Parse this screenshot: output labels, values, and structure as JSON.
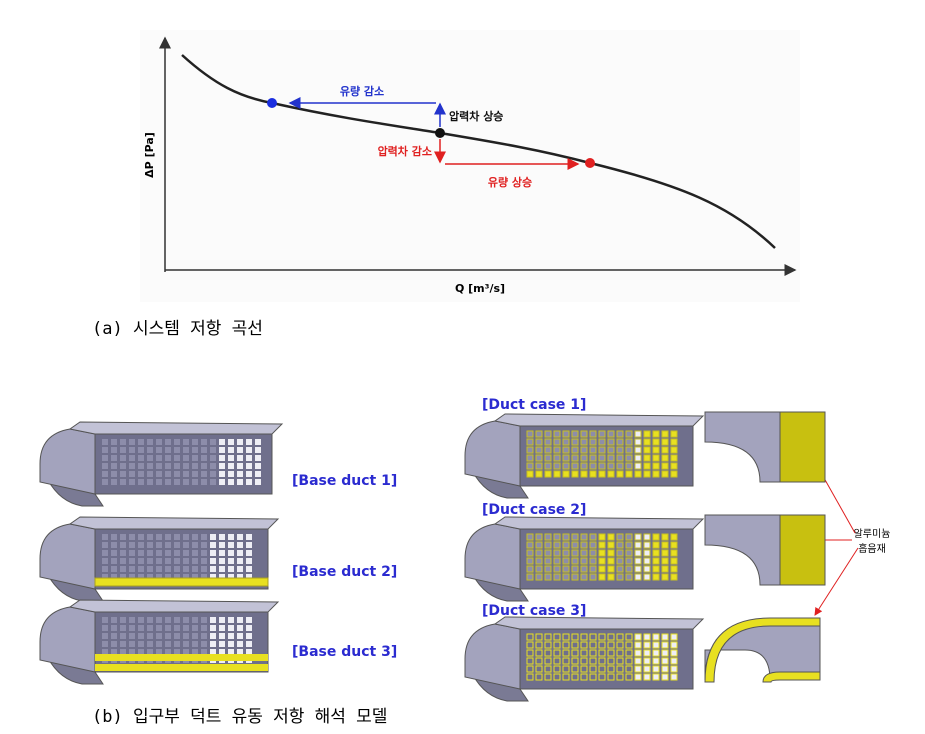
{
  "figure_a": {
    "y_axis_label": "ΔP [Pa]",
    "x_axis_label": "Q [m³/s]",
    "annotations": {
      "flow_decrease": "유량 감소",
      "pressure_increase": "압력차 상승",
      "pressure_decrease": "압력차 감소",
      "flow_increase": "유량 상승"
    },
    "caption": "(a) 시스템 저항 곡선"
  },
  "figure_b": {
    "base_ducts": [
      "[Base duct 1]",
      "[Base duct 2]",
      "[Base duct 3]"
    ],
    "duct_cases": [
      "[Duct case 1]",
      "[Duct case 2]",
      "[Duct case 3]"
    ],
    "material_label": [
      "알루미늄",
      "흡음재"
    ],
    "caption": "(b) 입구부 덕트 유동 저항 해석 모델"
  }
}
